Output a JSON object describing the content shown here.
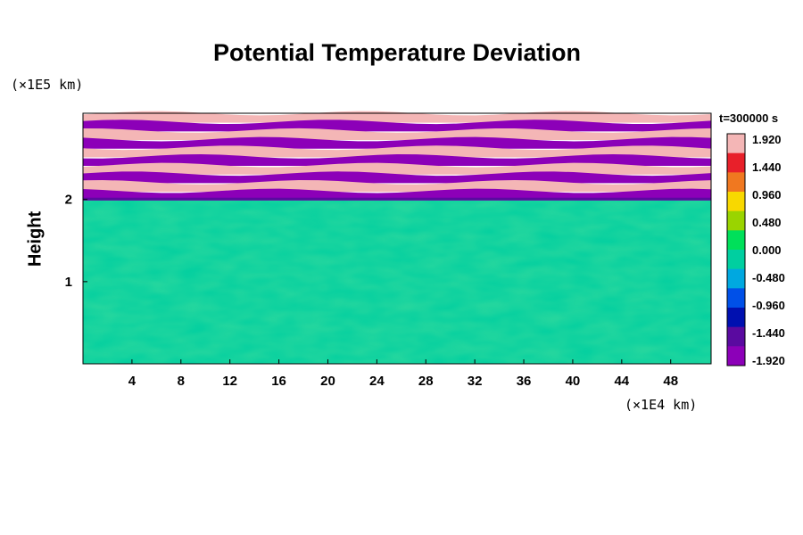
{
  "chart_data": {
    "type": "heatmap",
    "title": "Potential Temperature Deviation",
    "ylabel": "Height",
    "xlabel": "",
    "x_multiplier": "(×1E4 km)",
    "y_multiplier": "(×1E5 km)",
    "time_label": "t=300000 s",
    "xlim": [
      0,
      51.3
    ],
    "ylim": [
      0,
      3.05
    ],
    "x_ticks": [
      4,
      8,
      12,
      16,
      20,
      24,
      28,
      32,
      36,
      40,
      44,
      48
    ],
    "x_tick_labels": [
      "4",
      "8",
      "12",
      "16",
      "20",
      "24",
      "28",
      "32",
      "36",
      "40",
      "44",
      "48"
    ],
    "y_ticks": [
      1,
      2
    ],
    "y_tick_labels": [
      "1",
      "2"
    ],
    "colorbar": {
      "min": -1.92,
      "max": 1.92,
      "tick_labels": [
        "1.920",
        "1.440",
        "0.960",
        "0.480",
        "0.000",
        "-0.480",
        "-0.960",
        "-1.440",
        "-1.920"
      ],
      "colors": [
        "#f4b6b6",
        "#e8202a",
        "#f07820",
        "#f8d800",
        "#9ad400",
        "#00e05a",
        "#00cfa0",
        "#00a8e0",
        "#0050e8",
        "#0010b0",
        "#5a0aa0",
        "#8c00b8"
      ]
    },
    "fields": {
      "lower_layer_deviation": 0.0,
      "stratified_band_amplitude": 1.92,
      "stratified_band_bottom": 2.0,
      "band_count": 10
    }
  }
}
